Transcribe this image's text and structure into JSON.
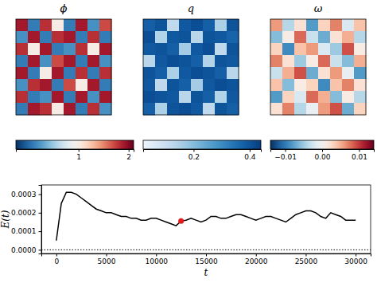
{
  "chart_data": [
    {
      "type": "heatmap",
      "title": "ϕ",
      "color": "seismic",
      "tick_labels": false,
      "cells": [
        [
          1.9,
          0.1,
          1.8,
          1.0,
          0.1,
          1.9,
          0.2,
          1.7
        ],
        [
          0.2,
          1.9,
          0.1,
          1.8,
          1.9,
          0.1,
          1.8,
          0.1
        ],
        [
          1.8,
          1.0,
          1.9,
          0.1,
          0.2,
          1.8,
          1.0,
          1.9
        ],
        [
          0.1,
          1.9,
          0.2,
          1.7,
          1.9,
          0.1,
          1.9,
          0.2
        ],
        [
          1.9,
          0.1,
          1.0,
          1.9,
          0.1,
          1.8,
          0.1,
          1.8
        ],
        [
          0.2,
          1.8,
          1.9,
          0.1,
          1.7,
          1.0,
          1.9,
          0.1
        ],
        [
          1.8,
          0.1,
          0.2,
          1.9,
          0.1,
          1.9,
          0.2,
          1.9
        ],
        [
          0.1,
          1.9,
          1.8,
          1.0,
          1.9,
          0.1,
          1.8,
          0.2
        ]
      ],
      "colorbar_range": [
        -0.25,
        2.1
      ],
      "colorbar_ticks": [
        1,
        2
      ]
    },
    {
      "type": "heatmap",
      "title": "q",
      "color": "Blues",
      "tick_labels": false,
      "cells": [
        [
          0.38,
          0.4,
          0.12,
          0.39,
          0.41,
          0.38,
          0.15,
          0.4
        ],
        [
          0.41,
          0.14,
          0.39,
          0.4,
          0.13,
          0.4,
          0.39,
          0.37
        ],
        [
          0.39,
          0.4,
          0.38,
          0.16,
          0.39,
          0.41,
          0.12,
          0.4
        ],
        [
          0.13,
          0.39,
          0.41,
          0.4,
          0.38,
          0.14,
          0.4,
          0.39
        ],
        [
          0.4,
          0.38,
          0.15,
          0.39,
          0.41,
          0.4,
          0.38,
          0.13
        ],
        [
          0.39,
          0.12,
          0.4,
          0.38,
          0.16,
          0.39,
          0.41,
          0.4
        ],
        [
          0.41,
          0.4,
          0.39,
          0.13,
          0.4,
          0.38,
          0.14,
          0.39
        ],
        [
          0.38,
          0.15,
          0.4,
          0.41,
          0.39,
          0.12,
          0.4,
          0.38
        ]
      ],
      "colorbar_range": [
        0.02,
        0.44
      ],
      "colorbar_ticks": [
        0.2,
        0.4
      ]
    },
    {
      "type": "heatmap",
      "title": "ω",
      "color": "bwr",
      "tick_labels": false,
      "cells": [
        [
          0.006,
          -0.004,
          0.002,
          -0.008,
          0.003,
          0.007,
          -0.002,
          0.004
        ],
        [
          -0.006,
          0.001,
          0.008,
          -0.003,
          -0.007,
          0.002,
          0.005,
          -0.004
        ],
        [
          0.003,
          -0.009,
          0.004,
          0.006,
          -0.002,
          -0.005,
          0.009,
          0.001
        ],
        [
          0.007,
          0.002,
          -0.005,
          0.001,
          0.008,
          -0.003,
          -0.006,
          0.005
        ],
        [
          -0.003,
          0.005,
          0.009,
          -0.007,
          0.002,
          0.006,
          -0.001,
          -0.008
        ],
        [
          0.004,
          -0.006,
          0.001,
          0.003,
          -0.009,
          0.004,
          0.007,
          0.002
        ],
        [
          -0.008,
          0.003,
          -0.002,
          0.008,
          0.005,
          -0.006,
          0.001,
          -0.004
        ],
        [
          0.002,
          0.007,
          -0.004,
          -0.001,
          0.006,
          0.009,
          -0.007,
          0.003
        ]
      ],
      "colorbar_range": [
        -0.014,
        0.014
      ],
      "colorbar_ticks": [
        {
          "value": -0.01,
          "label": "−0.01"
        },
        {
          "value": 0,
          "label": "0.00"
        },
        {
          "value": 0.01,
          "label": "0.01"
        }
      ]
    },
    {
      "type": "line",
      "xlabel": "t",
      "ylabel": "E(t)",
      "color": "#000000",
      "x": [
        0,
        500,
        1000,
        1500,
        2000,
        2500,
        3000,
        3500,
        4000,
        4500,
        5000,
        5500,
        6000,
        6500,
        7000,
        7500,
        8000,
        8500,
        9000,
        9500,
        10000,
        10500,
        11000,
        11500,
        12000,
        12500,
        13000,
        13500,
        14000,
        14500,
        15000,
        15500,
        16000,
        16500,
        17000,
        17500,
        18000,
        18500,
        19000,
        19500,
        20000,
        20500,
        21000,
        21500,
        22000,
        22500,
        23000,
        23500,
        24000,
        24500,
        25000,
        25500,
        26000,
        26500,
        27000,
        27500,
        28000,
        28500,
        29000,
        29500,
        30000
      ],
      "values": [
        5e-05,
        0.00025,
        0.00031,
        0.00031,
        0.0003,
        0.00028,
        0.00026,
        0.00024,
        0.00022,
        0.00021,
        0.0002,
        0.0002,
        0.00019,
        0.00018,
        0.00018,
        0.00017,
        0.00017,
        0.00016,
        0.00016,
        0.00017,
        0.00017,
        0.00016,
        0.00015,
        0.00014,
        0.00013,
        0.000155,
        0.00016,
        0.00017,
        0.00016,
        0.00015,
        0.00016,
        0.00018,
        0.00018,
        0.00017,
        0.00017,
        0.00018,
        0.00019,
        0.00019,
        0.00018,
        0.00017,
        0.00016,
        0.00017,
        0.00018,
        0.00018,
        0.00017,
        0.00016,
        0.00015,
        0.00017,
        0.00019,
        0.0002,
        0.00021,
        0.00021,
        0.0002,
        0.00018,
        0.00017,
        0.0002,
        0.00019,
        0.00018,
        0.00016,
        0.00016,
        0.00016
      ],
      "xlim": [
        -1500,
        31500
      ],
      "ylim": [
        -2e-05,
        0.00035
      ],
      "xticks": [
        0,
        5000,
        10000,
        15000,
        20000,
        25000,
        30000
      ],
      "yticks": [
        {
          "value": 0,
          "label": "0.0000"
        },
        {
          "value": 0.0001,
          "label": "0.0001"
        },
        {
          "value": 0.0002,
          "label": "0.0002"
        },
        {
          "value": 0.0003,
          "label": "0.0003"
        }
      ],
      "highlight": {
        "x": 12500,
        "value": 0.000155,
        "color": "#e41a1c",
        "marker": "circle"
      },
      "reference_line": {
        "value": 0,
        "line_style": "dotted"
      }
    }
  ]
}
